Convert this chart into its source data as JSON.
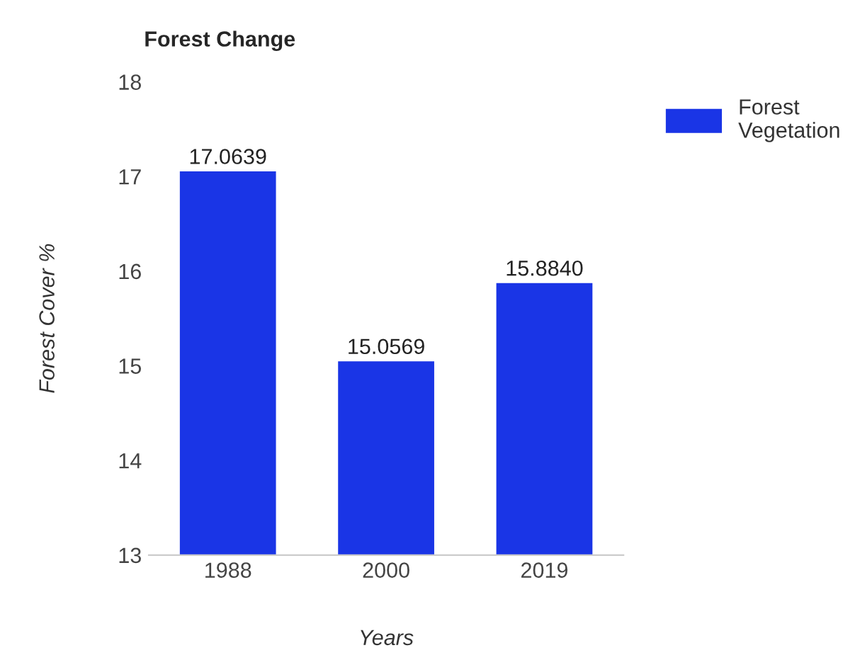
{
  "chart_data": {
    "type": "bar",
    "title": "Forest Change",
    "xlabel": "Years",
    "ylabel": "Forest Cover %",
    "categories": [
      "1988",
      "2000",
      "2019"
    ],
    "series": [
      {
        "name": "Forest Vegetation",
        "color": "#1a35e6",
        "values": [
          17.0639,
          15.0569,
          15.884
        ],
        "value_labels": [
          "17.0639",
          "15.0569",
          "15.8840"
        ]
      }
    ],
    "ylim": [
      13,
      18
    ],
    "yticks": [
      13,
      14,
      15,
      16,
      17,
      18
    ],
    "grid": false,
    "legend": "top right"
  }
}
